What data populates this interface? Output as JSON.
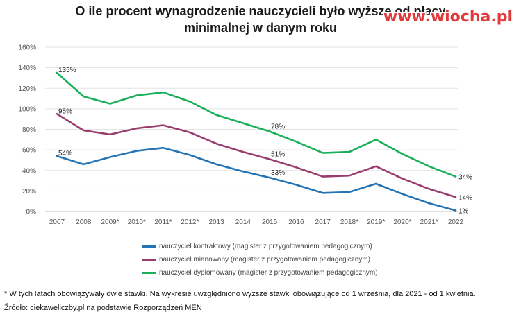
{
  "watermark": "www.wiocha.pl",
  "footnote": "* W tych latach obowiązywały dwie stawki. Na wykresie uwzględniono wyższe stawki obowiązujące od 1 września, dla 2021 - od 1 kwietnia.",
  "source": "Źródło: ciekaweliczby.pl na podstawie Rozporządzeń MEN",
  "chart_data": {
    "type": "line",
    "title_lines": [
      "O ile procent wynagrodzenie nauczycieli było wyższe od płacy",
      "minimalnej w danym roku"
    ],
    "xlabel": "",
    "ylabel": "",
    "ylim": [
      0,
      160
    ],
    "y_ticks": [
      "0%",
      "20%",
      "40%",
      "60%",
      "80%",
      "100%",
      "120%",
      "140%",
      "160%"
    ],
    "grid": true,
    "legend_position": "bottom",
    "categories": [
      "2007",
      "2008",
      "2009*",
      "2010*",
      "2011*",
      "2012*",
      "2013",
      "2014",
      "2015",
      "2016",
      "2017",
      "2018*",
      "2019*",
      "2020*",
      "2021*",
      "2022"
    ],
    "series": [
      {
        "name": "nauczyciel kontraktowy (magister z przygotowaniem pedagogicznym)",
        "color": "#2474b5",
        "values": [
          54,
          46,
          53,
          59,
          62,
          55,
          46,
          39,
          33,
          26,
          18,
          19,
          27,
          17,
          8,
          1
        ],
        "labels": [
          {
            "index": 0,
            "text": "54%"
          },
          {
            "index": 8,
            "text": "33%"
          },
          {
            "index": 15,
            "text": "1%"
          }
        ]
      },
      {
        "name": "nauczyciel mianowany (magister z przygotowaniem pedagogicznym)",
        "color": "#993c6e",
        "values": [
          95,
          79,
          75,
          81,
          84,
          77,
          66,
          58,
          51,
          43,
          34,
          35,
          44,
          32,
          22,
          14
        ],
        "labels": [
          {
            "index": 0,
            "text": "95%"
          },
          {
            "index": 8,
            "text": "51%"
          },
          {
            "index": 15,
            "text": "14%"
          }
        ]
      },
      {
        "name": "nauczyciel dyplomowany (magister z przygotowaniem pedagogicznym)",
        "color": "#1aaf5a",
        "values": [
          135,
          112,
          105,
          113,
          116,
          107,
          94,
          86,
          78,
          68,
          57,
          58,
          70,
          56,
          44,
          34
        ],
        "labels": [
          {
            "index": 0,
            "text": "135%"
          },
          {
            "index": 8,
            "text": "78%"
          },
          {
            "index": 15,
            "text": "34%"
          }
        ]
      }
    ]
  }
}
